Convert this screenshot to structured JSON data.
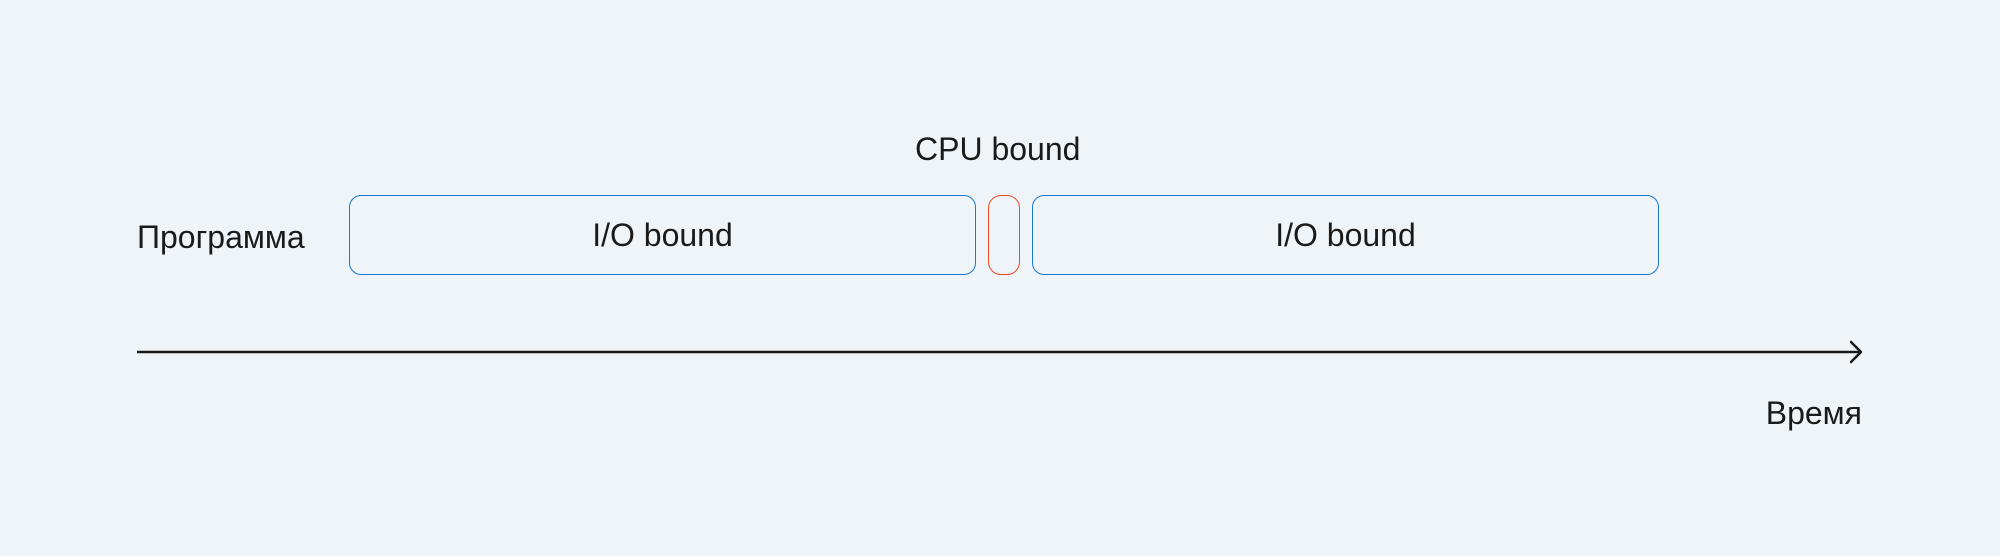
{
  "diagram": {
    "row_label": "Программа",
    "cpu_label": "CPU bound",
    "io_block_1_label": "I/O bound",
    "io_block_2_label": "I/O bound",
    "time_axis_label": "Время",
    "colors": {
      "background": "#eff4f8",
      "io_border": "#1a78d6",
      "cpu_border": "#ee4b22",
      "text": "#1a1a1a",
      "axis": "#1a1a1a"
    }
  }
}
